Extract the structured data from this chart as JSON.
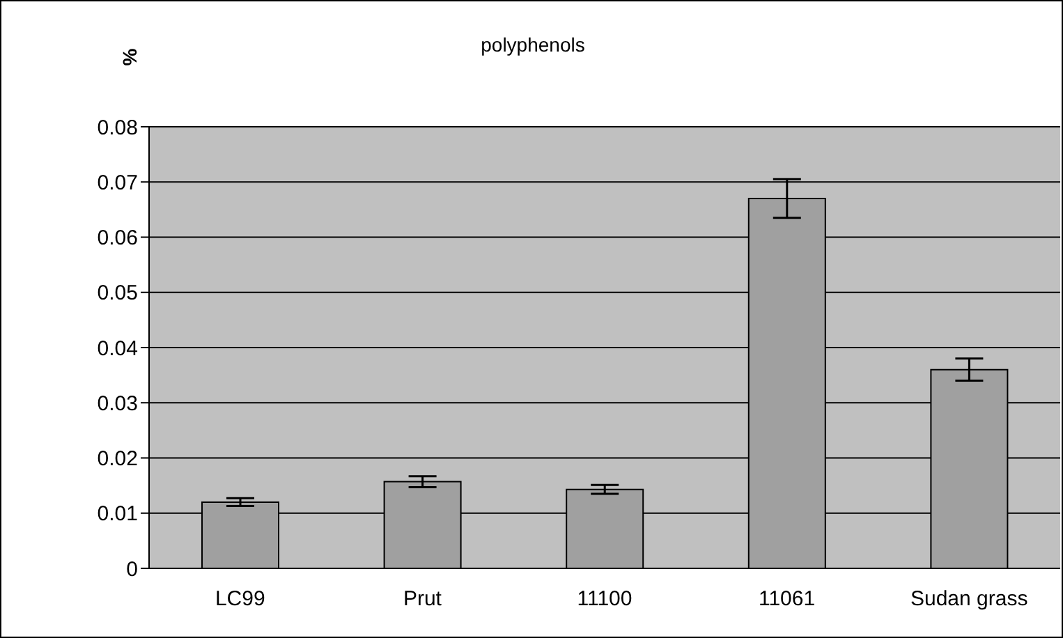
{
  "chart_data": {
    "type": "bar",
    "title": "polyphenols",
    "ylabel": "%",
    "categories": [
      "LC99",
      "Prut",
      "11100",
      "11061",
      "Sudan grass"
    ],
    "values": [
      0.012,
      0.0157,
      0.0143,
      0.067,
      0.036
    ],
    "errors": [
      0.0007,
      0.001,
      0.0008,
      0.0035,
      0.002
    ],
    "color": "#a0a0a0",
    "ylim": [
      0,
      0.08
    ],
    "yticks": [
      0,
      0.01,
      0.02,
      0.03,
      0.04,
      0.05,
      0.06,
      0.07,
      0.08
    ],
    "grid": "y",
    "legend": false
  }
}
